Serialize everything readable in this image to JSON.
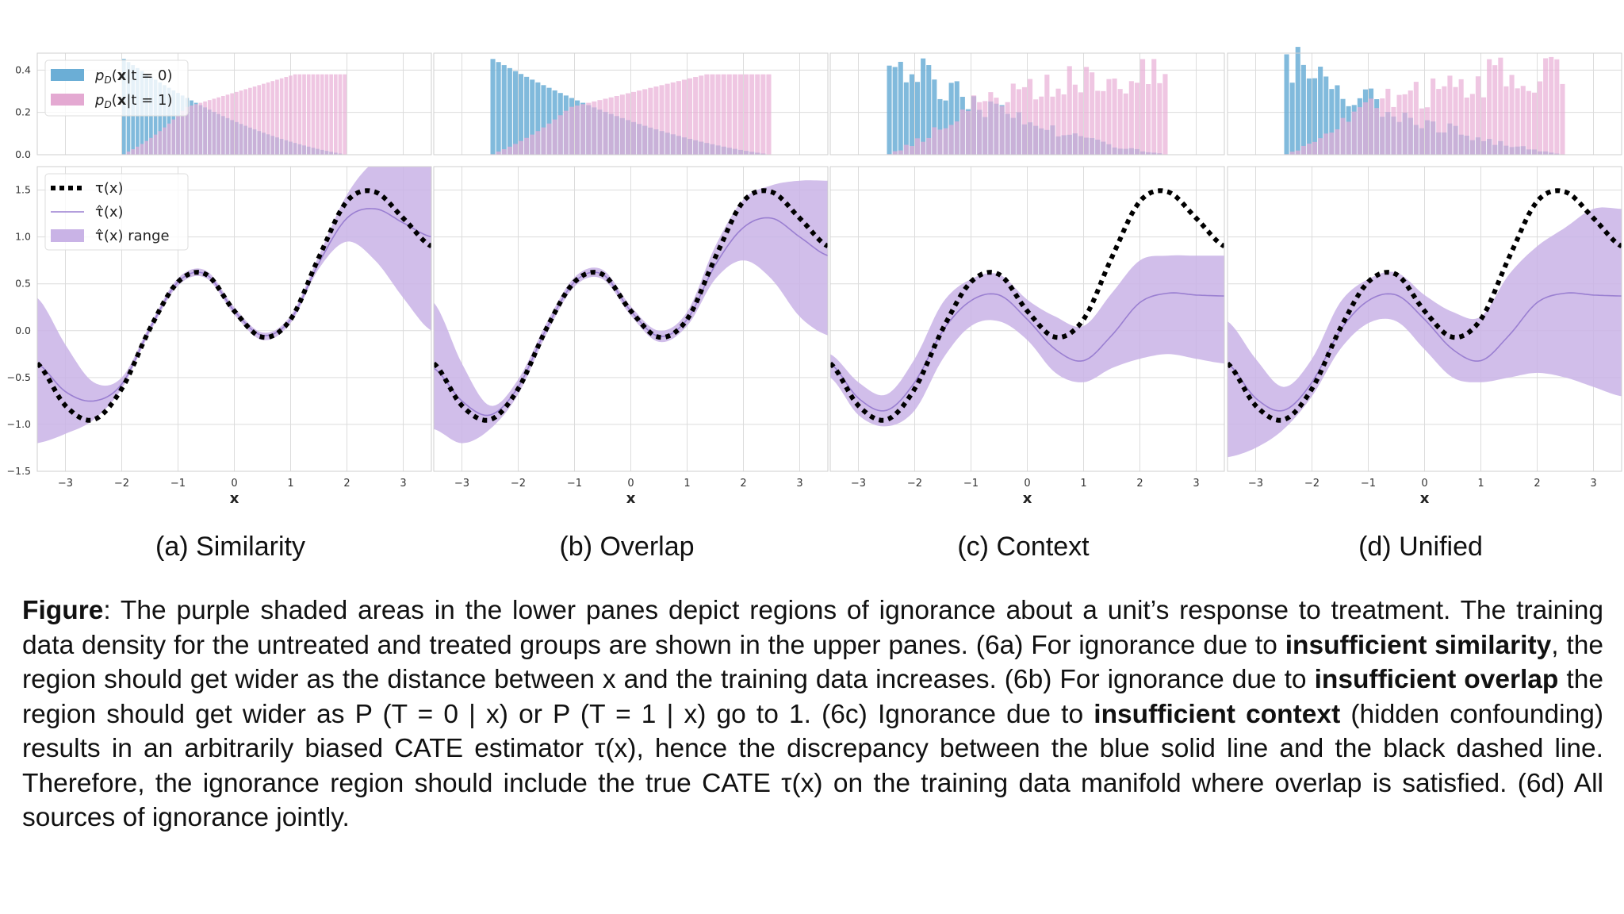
{
  "panel_titles": [
    "(a) Similarity",
    "(b) Overlap",
    "(c) Context",
    "(d) Unified"
  ],
  "xlabel": "x",
  "legend_top": [
    {
      "label_pre": "p",
      "label_sub": "D",
      "label_bold": "x",
      "label_post": "|t = 0)",
      "color": "#6baed6"
    },
    {
      "label_pre": "p",
      "label_sub": "D",
      "label_bold": "x",
      "label_post": "|t = 1)",
      "color": "#e4a9d2"
    }
  ],
  "legend_bottom": [
    {
      "label": "τ(x)",
      "style": "dotted-black"
    },
    {
      "label": "τ̂(x)",
      "style": "line-purple"
    },
    {
      "label": "τ̂(x) range",
      "style": "fill-purple"
    }
  ],
  "colors": {
    "untreated": "#6baed6",
    "treated": "#e8aed6",
    "band": "#c9b3e6",
    "tau_hat": "#9a7fd1",
    "true_tau": "#000000",
    "grid": "#dcdcdc"
  },
  "caption": {
    "lead": "Figure",
    "parts": [
      {
        "t": ": The purple shaded areas in the lower panes depict regions of ignorance about a unit’s response to treatment. The training data density for the untreated and treated groups are shown in the upper panes. (6a) For ignorance due to ",
        "b": false
      },
      {
        "t": "insufficient similarity",
        "b": true
      },
      {
        "t": ", the region should get wider as the distance between x and the training data increases. (6b) For ignorance due to ",
        "b": false
      },
      {
        "t": "insufficient overlap",
        "b": true
      },
      {
        "t": " the region should get wider as P (T = 0 | x) or P (T = 1 | x) go to 1. (6c) Ignorance due to ",
        "b": false
      },
      {
        "t": "insufficient context",
        "b": true
      },
      {
        "t": " (hidden confounding) results in an arbitrarily biased CATE estimator τ(x), hence the discrepancy between the blue solid line and the black dashed line. Therefore, the ignorance region should include the true CATE τ(x) on the training data manifold where overlap is satisfied. (6d) All sources of ignorance jointly.",
        "b": false
      }
    ]
  },
  "chart_data": [
    {
      "type": "line",
      "title": "(a) Similarity",
      "xlabel": "x",
      "xlim": [
        -3.5,
        3.5
      ],
      "ylim": [
        -1.5,
        1.75
      ],
      "xticks": [
        -3,
        -2,
        -1,
        0,
        1,
        2,
        3
      ],
      "yticks": [
        -1.5,
        -1.0,
        -0.5,
        0.0,
        0.5,
        1.0,
        1.5
      ],
      "hist_ylim": [
        0,
        0.48
      ],
      "hist_yticks": [
        0.0,
        0.2,
        0.4
      ],
      "hist_range": [
        -2,
        2
      ],
      "hist_style": "smooth",
      "series": [
        {
          "name": "τ(x)",
          "x": [
            -3.5,
            -3,
            -2.5,
            -2,
            -1.5,
            -1,
            -0.5,
            0,
            0.5,
            1,
            1.5,
            2,
            2.5,
            3,
            3.5
          ],
          "values": [
            -0.35,
            -0.8,
            -0.95,
            -0.62,
            0.02,
            0.52,
            0.6,
            0.21,
            -0.07,
            0.12,
            0.78,
            1.38,
            1.48,
            1.2,
            0.9
          ]
        },
        {
          "name": "τ̂(x)",
          "x": [
            -3.5,
            -3,
            -2.5,
            -2,
            -1.5,
            -1,
            -0.5,
            0,
            0.5,
            1,
            1.5,
            2,
            2.5,
            3,
            3.5
          ],
          "values": [
            -0.35,
            -0.65,
            -0.75,
            -0.57,
            0.02,
            0.52,
            0.6,
            0.21,
            -0.05,
            0.12,
            0.72,
            1.2,
            1.3,
            1.15,
            1.0
          ]
        },
        {
          "name": "τ̂(x) range",
          "x": [
            -3.5,
            -3,
            -2.5,
            -2,
            -1.5,
            -1,
            -0.5,
            0,
            0.5,
            1,
            1.5,
            2,
            2.5,
            3,
            3.5
          ],
          "lower": [
            -1.2,
            -1.1,
            -0.95,
            -0.62,
            -0.02,
            0.48,
            0.56,
            0.17,
            -0.1,
            0.08,
            0.66,
            0.95,
            0.75,
            0.35,
            0.0
          ],
          "upper": [
            0.35,
            -0.15,
            -0.55,
            -0.5,
            0.06,
            0.56,
            0.64,
            0.25,
            -0.02,
            0.16,
            0.8,
            1.45,
            1.8,
            1.8,
            1.8
          ]
        }
      ]
    },
    {
      "type": "line",
      "title": "(b) Overlap",
      "xlabel": "x",
      "xlim": [
        -3.5,
        3.5
      ],
      "ylim": [
        -1.5,
        1.75
      ],
      "xticks": [
        -3,
        -2,
        -1,
        0,
        1,
        2,
        3
      ],
      "yticks": [
        -1.5,
        -1.0,
        -0.5,
        0.0,
        0.5,
        1.0,
        1.5
      ],
      "hist_ylim": [
        0,
        0.48
      ],
      "hist_yticks": [
        0.0,
        0.2,
        0.4
      ],
      "hist_range": [
        -2.5,
        2.5
      ],
      "hist_style": "smooth",
      "series": [
        {
          "name": "τ(x)",
          "x": [
            -3.5,
            -3,
            -2.5,
            -2,
            -1.5,
            -1,
            -0.5,
            0,
            0.5,
            1,
            1.5,
            2,
            2.5,
            3,
            3.5
          ],
          "values": [
            -0.35,
            -0.8,
            -0.95,
            -0.62,
            0.02,
            0.52,
            0.6,
            0.21,
            -0.07,
            0.12,
            0.78,
            1.38,
            1.48,
            1.2,
            0.9
          ]
        },
        {
          "name": "τ̂(x)",
          "x": [
            -3.5,
            -3,
            -2.5,
            -2,
            -1.5,
            -1,
            -0.5,
            0,
            0.5,
            1,
            1.5,
            2,
            2.5,
            3,
            3.5
          ],
          "values": [
            -0.4,
            -0.75,
            -0.9,
            -0.6,
            0.02,
            0.52,
            0.6,
            0.21,
            -0.06,
            0.12,
            0.7,
            1.1,
            1.2,
            1.0,
            0.8
          ]
        },
        {
          "name": "τ̂(x) range",
          "x": [
            -3.5,
            -3,
            -2.5,
            -2,
            -1.5,
            -1,
            -0.5,
            0,
            0.5,
            1,
            1.5,
            2,
            2.5,
            3,
            3.5
          ],
          "lower": [
            -1.05,
            -1.2,
            -1.05,
            -0.68,
            -0.04,
            0.47,
            0.55,
            0.16,
            -0.12,
            0.05,
            0.55,
            0.75,
            0.55,
            0.15,
            -0.05
          ],
          "upper": [
            0.3,
            -0.35,
            -0.8,
            -0.52,
            0.08,
            0.57,
            0.65,
            0.26,
            0.0,
            0.2,
            0.9,
            1.4,
            1.55,
            1.6,
            1.6
          ]
        }
      ]
    },
    {
      "type": "line",
      "title": "(c) Context",
      "xlabel": "x",
      "xlim": [
        -3.5,
        3.5
      ],
      "ylim": [
        -1.5,
        1.75
      ],
      "xticks": [
        -3,
        -2,
        -1,
        0,
        1,
        2,
        3
      ],
      "yticks": [
        -1.5,
        -1.0,
        -0.5,
        0.0,
        0.5,
        1.0,
        1.5
      ],
      "hist_ylim": [
        0,
        0.48
      ],
      "hist_yticks": [
        0.0,
        0.2,
        0.4
      ],
      "hist_range": [
        -2.5,
        2.5
      ],
      "hist_style": "noisy",
      "series": [
        {
          "name": "τ(x)",
          "x": [
            -3.5,
            -3,
            -2.5,
            -2,
            -1.5,
            -1,
            -0.5,
            0,
            0.5,
            1,
            1.5,
            2,
            2.5,
            3,
            3.5
          ],
          "values": [
            -0.35,
            -0.8,
            -0.95,
            -0.62,
            0.02,
            0.52,
            0.6,
            0.21,
            -0.07,
            0.12,
            0.78,
            1.38,
            1.48,
            1.2,
            0.9
          ]
        },
        {
          "name": "τ̂(x)",
          "x": [
            -3.5,
            -3,
            -2.5,
            -2,
            -1.5,
            -1,
            -0.5,
            0,
            0.5,
            1,
            1.5,
            2,
            2.5,
            3,
            3.5
          ],
          "values": [
            -0.35,
            -0.72,
            -0.85,
            -0.55,
            0.0,
            0.32,
            0.38,
            0.12,
            -0.2,
            -0.32,
            -0.05,
            0.3,
            0.4,
            0.38,
            0.37
          ]
        },
        {
          "name": "τ̂(x) range",
          "x": [
            -3.5,
            -3,
            -2.5,
            -2,
            -1.5,
            -1,
            -0.5,
            0,
            0.5,
            1,
            1.5,
            2,
            2.5,
            3,
            3.5
          ],
          "lower": [
            -0.5,
            -0.9,
            -1.02,
            -0.85,
            -0.3,
            0.05,
            0.1,
            -0.1,
            -0.45,
            -0.55,
            -0.4,
            -0.3,
            -0.25,
            -0.3,
            -0.35
          ],
          "upper": [
            -0.25,
            -0.55,
            -0.68,
            -0.3,
            0.3,
            0.55,
            0.6,
            0.33,
            0.15,
            0.05,
            0.4,
            0.75,
            0.8,
            0.8,
            0.8
          ]
        }
      ]
    },
    {
      "type": "line",
      "title": "(d) Unified",
      "xlabel": "x",
      "xlim": [
        -3.5,
        3.5
      ],
      "ylim": [
        -1.5,
        1.75
      ],
      "xticks": [
        -3,
        -2,
        -1,
        0,
        1,
        2,
        3
      ],
      "yticks": [
        -1.5,
        -1.0,
        -0.5,
        0.0,
        0.5,
        1.0,
        1.5
      ],
      "hist_ylim": [
        0,
        0.48
      ],
      "hist_yticks": [
        0.0,
        0.2,
        0.4
      ],
      "hist_range": [
        -2.5,
        2.5
      ],
      "hist_style": "noisy",
      "series": [
        {
          "name": "τ(x)",
          "x": [
            -3.5,
            -3,
            -2.5,
            -2,
            -1.5,
            -1,
            -0.5,
            0,
            0.5,
            1,
            1.5,
            2,
            2.5,
            3,
            3.5
          ],
          "values": [
            -0.35,
            -0.8,
            -0.95,
            -0.62,
            0.02,
            0.52,
            0.6,
            0.21,
            -0.07,
            0.12,
            0.78,
            1.38,
            1.48,
            1.2,
            0.9
          ]
        },
        {
          "name": "τ̂(x)",
          "x": [
            -3.5,
            -3,
            -2.5,
            -2,
            -1.5,
            -1,
            -0.5,
            0,
            0.5,
            1,
            1.5,
            2,
            2.5,
            3,
            3.5
          ],
          "values": [
            -0.35,
            -0.72,
            -0.85,
            -0.55,
            0.0,
            0.32,
            0.38,
            0.12,
            -0.2,
            -0.32,
            -0.05,
            0.3,
            0.4,
            0.38,
            0.37
          ]
        },
        {
          "name": "τ̂(x) range",
          "x": [
            -3.5,
            -3,
            -2.5,
            -2,
            -1.5,
            -1,
            -0.5,
            0,
            0.5,
            1,
            1.5,
            2,
            2.5,
            3,
            3.5
          ],
          "lower": [
            -1.35,
            -1.25,
            -1.05,
            -0.7,
            -0.2,
            0.08,
            0.1,
            -0.2,
            -0.5,
            -0.55,
            -0.5,
            -0.45,
            -0.5,
            -0.6,
            -0.7
          ],
          "upper": [
            0.1,
            -0.3,
            -0.6,
            -0.3,
            0.3,
            0.55,
            0.62,
            0.38,
            0.2,
            0.15,
            0.6,
            0.9,
            1.1,
            1.3,
            1.3
          ]
        }
      ]
    }
  ]
}
